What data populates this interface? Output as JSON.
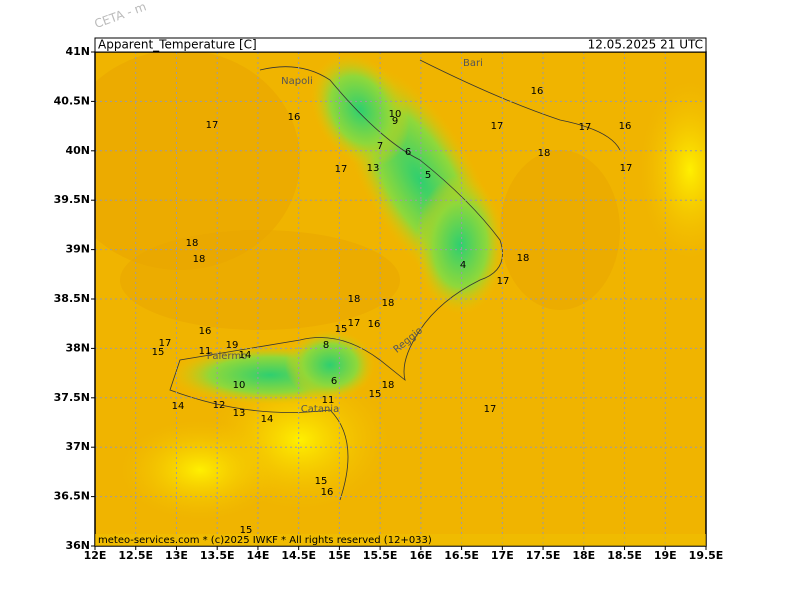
{
  "map": {
    "watermark": "CETA - m",
    "title": "Apparent_Temperature [C]",
    "valid_time": "12.05.2025 21 UTC",
    "footer": "meteo-services.com * (c)2025 IWKF * All rights reserved (12+033)",
    "lon_ticks": [
      {
        "value": 12,
        "label": "12E"
      },
      {
        "value": 12.5,
        "label": "12.5E"
      },
      {
        "value": 13,
        "label": "13E"
      },
      {
        "value": 13.5,
        "label": "13.5E"
      },
      {
        "value": 14,
        "label": "14E"
      },
      {
        "value": 14.5,
        "label": "14.5E"
      },
      {
        "value": 15,
        "label": "15E"
      },
      {
        "value": 15.5,
        "label": "15.5E"
      },
      {
        "value": 16,
        "label": "16E"
      },
      {
        "value": 16.5,
        "label": "16.5E"
      },
      {
        "value": 17,
        "label": "17E"
      },
      {
        "value": 17.5,
        "label": "17.5E"
      },
      {
        "value": 18,
        "label": "18E"
      },
      {
        "value": 18.5,
        "label": "18.5E"
      },
      {
        "value": 19,
        "label": "19E"
      },
      {
        "value": 19.5,
        "label": "19.5E"
      }
    ],
    "lat_ticks": [
      {
        "value": 36,
        "label": "36N"
      },
      {
        "value": 36.5,
        "label": "36.5N"
      },
      {
        "value": 37,
        "label": "37N"
      },
      {
        "value": 37.5,
        "label": "37.5N"
      },
      {
        "value": 38,
        "label": "38N"
      },
      {
        "value": 38.5,
        "label": "38.5N"
      },
      {
        "value": 39,
        "label": "39N"
      },
      {
        "value": 39.5,
        "label": "39.5N"
      },
      {
        "value": 40,
        "label": "40N"
      },
      {
        "value": 40.5,
        "label": "40.5N"
      },
      {
        "value": 41,
        "label": "41N"
      }
    ],
    "cities": [
      "Napoli",
      "Bari",
      "Palermo",
      "Catania",
      "Reggio"
    ],
    "contour_labels": [
      17,
      16,
      16,
      10,
      9,
      17,
      17,
      16,
      18,
      17,
      7,
      6,
      5,
      17,
      13,
      4,
      18,
      17,
      18,
      18,
      18,
      18,
      17,
      16,
      15,
      16,
      17,
      15,
      19,
      11,
      14,
      10,
      14,
      12,
      13,
      14,
      6,
      11,
      18,
      15,
      17,
      15,
      16,
      15,
      8
    ]
  }
}
